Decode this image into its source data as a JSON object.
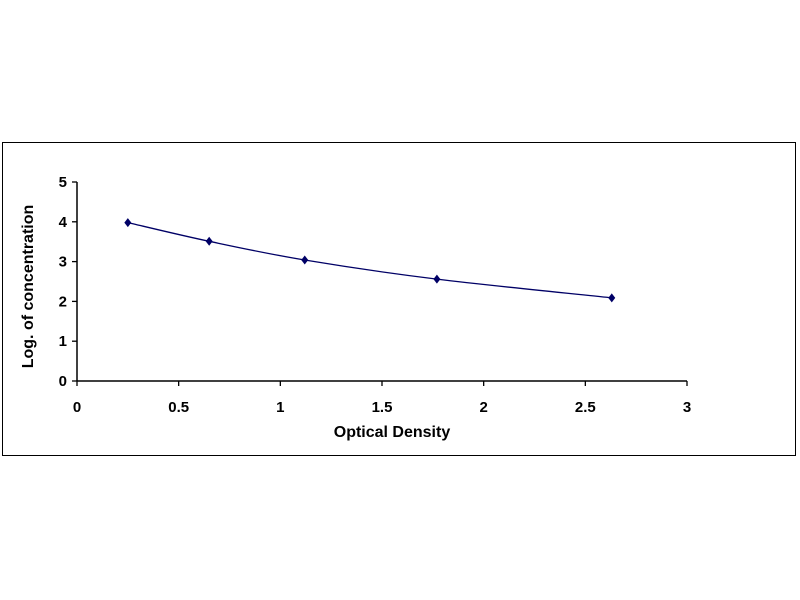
{
  "chart_data": {
    "type": "scatter",
    "title": "",
    "xlabel": "Optical Density",
    "ylabel": "Log. of concentration",
    "xlim": [
      0,
      3
    ],
    "ylim": [
      0,
      5
    ],
    "xticks": [
      "0",
      "0.5",
      "1",
      "1.5",
      "2",
      "2.5",
      "3"
    ],
    "yticks": [
      "0",
      "1",
      "2",
      "3",
      "4",
      "5"
    ],
    "grid": false,
    "legend": "none",
    "series": [
      {
        "x": [
          0.25,
          0.65,
          1.12,
          1.77,
          2.63
        ],
        "y": [
          3.98,
          3.51,
          3.04,
          2.56,
          2.09
        ],
        "marker": "diamond",
        "line": "smooth",
        "color": "#000066"
      }
    ]
  }
}
